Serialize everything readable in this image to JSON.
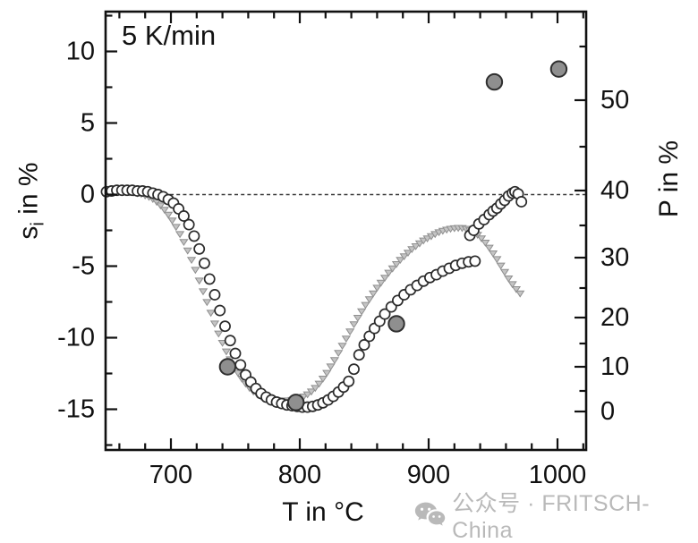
{
  "annotation": {
    "heating_rate": "5 K/min"
  },
  "watermark": {
    "icon": "wechat-icon",
    "text": "公众号 · FRITSCH-China"
  },
  "chart_data": {
    "type": "scatter",
    "title": "",
    "xlabel": "T in °C",
    "ylabel_left": {
      "pre": "s",
      "sub": "i",
      "post": " in %"
    },
    "ylabel_right": "P in %",
    "x_axis": {
      "lim": [
        650,
        1022
      ],
      "major_ticks": [
        700,
        800,
        900,
        1000
      ],
      "minor_step": 20,
      "minor_range": [
        660,
        1020
      ]
    },
    "y_left_axis": {
      "lim": [
        -17.8,
        12.8
      ],
      "major_ticks": [
        10,
        5,
        0,
        -5,
        -10,
        -15
      ],
      "minor_ticks": [
        12.5,
        7.5,
        2.5,
        -2.5,
        -7.5,
        -12.5,
        -17.5
      ]
    },
    "y_right_axis": {
      "major_ticks": [
        0,
        10,
        20,
        30,
        40,
        50
      ],
      "minor_ticks": [
        5,
        15,
        25,
        35,
        45,
        55
      ],
      "scale": "nonlinear",
      "anchors_P_to_py": [
        [
          0,
          460
        ],
        [
          5,
          437
        ],
        [
          10,
          410
        ],
        [
          15,
          384
        ],
        [
          20,
          355
        ],
        [
          25,
          322
        ],
        [
          30,
          288
        ],
        [
          35,
          252
        ],
        [
          40,
          213
        ],
        [
          45,
          164
        ],
        [
          50,
          112
        ],
        [
          55,
          52
        ]
      ]
    },
    "zero_line": {
      "y": 0,
      "style": "dashed"
    },
    "grid": false,
    "legend": "none",
    "colors": {
      "axis": "#111111",
      "open_circle_stroke": "#2b2b2b",
      "open_circle_fill": "#ffffff",
      "triangle_fill": "#c4c4c4",
      "triangle_stroke": "#8f8f8f",
      "filled_circle_fill": "#8f8f8f",
      "filled_circle_stroke": "#2f2f2f",
      "watermark": "#b9b9b9"
    },
    "series": [
      {
        "name": "si-shrinkage-open-circles",
        "marker": "open-circle",
        "y_axis": "left",
        "points": [
          [
            650,
            0.2
          ],
          [
            654,
            0.25
          ],
          [
            658,
            0.3
          ],
          [
            662,
            0.3
          ],
          [
            666,
            0.3
          ],
          [
            670,
            0.3
          ],
          [
            674,
            0.25
          ],
          [
            678,
            0.25
          ],
          [
            682,
            0.2
          ],
          [
            686,
            0.1
          ],
          [
            690,
            0
          ],
          [
            694,
            -0.15
          ],
          [
            698,
            -0.35
          ],
          [
            702,
            -0.6
          ],
          [
            706,
            -1
          ],
          [
            710,
            -1.5
          ],
          [
            714,
            -2.1
          ],
          [
            718,
            -2.9
          ],
          [
            722,
            -3.8
          ],
          [
            726,
            -4.8
          ],
          [
            730,
            -5.9
          ],
          [
            734,
            -7
          ],
          [
            738,
            -8.1
          ],
          [
            742,
            -9.2
          ],
          [
            746,
            -10.2
          ],
          [
            750,
            -11.1
          ],
          [
            754,
            -11.9
          ],
          [
            758,
            -12.6
          ],
          [
            762,
            -13.1
          ],
          [
            766,
            -13.55
          ],
          [
            770,
            -13.9
          ],
          [
            774,
            -14.15
          ],
          [
            778,
            -14.35
          ],
          [
            782,
            -14.5
          ],
          [
            786,
            -14.6
          ],
          [
            790,
            -14.7
          ],
          [
            794,
            -14.75
          ],
          [
            798,
            -14.8
          ],
          [
            802,
            -14.85
          ],
          [
            806,
            -14.85
          ],
          [
            810,
            -14.8
          ],
          [
            814,
            -14.7
          ],
          [
            818,
            -14.55
          ],
          [
            822,
            -14.35
          ],
          [
            826,
            -14.1
          ],
          [
            830,
            -13.8
          ],
          [
            834,
            -13.45
          ],
          [
            838,
            -13.05
          ],
          [
            842,
            -12.2
          ],
          [
            846,
            -11.2
          ],
          [
            850,
            -10.5
          ],
          [
            854,
            -9.9
          ],
          [
            858,
            -9.35
          ],
          [
            862,
            -8.85
          ],
          [
            866,
            -8.35
          ],
          [
            871,
            -7.85
          ],
          [
            876,
            -7.4
          ],
          [
            881,
            -7
          ],
          [
            886,
            -6.65
          ],
          [
            891,
            -6.35
          ],
          [
            896,
            -6.05
          ],
          [
            901,
            -5.8
          ],
          [
            906,
            -5.6
          ],
          [
            911,
            -5.35
          ],
          [
            916,
            -5.15
          ],
          [
            921,
            -4.95
          ],
          [
            926,
            -4.8
          ],
          [
            931,
            -4.7
          ],
          [
            936,
            -4.65
          ]
        ]
      },
      {
        "name": "si-shrinkage-final-expansion",
        "marker": "open-circle",
        "y_axis": "left",
        "points": [
          [
            932,
            -2.85
          ],
          [
            935,
            -2.5
          ],
          [
            939,
            -2.05
          ],
          [
            943,
            -1.75
          ],
          [
            947,
            -1.4
          ],
          [
            950,
            -1.15
          ],
          [
            953,
            -0.95
          ],
          [
            956,
            -0.65
          ],
          [
            959,
            -0.4
          ],
          [
            962,
            -0.1
          ],
          [
            965,
            0.1
          ],
          [
            967,
            0.2
          ],
          [
            969.5,
            0.05
          ],
          [
            972,
            -0.5
          ]
        ]
      },
      {
        "name": "si-shrinkage-triangles",
        "marker": "triangle-down",
        "y_axis": "left",
        "points": [
          [
            650,
            0.1
          ],
          [
            653,
            0.12
          ],
          [
            656,
            0.15
          ],
          [
            659,
            0.17
          ],
          [
            662,
            0.18
          ],
          [
            665,
            0.18
          ],
          [
            668,
            0.17
          ],
          [
            671,
            0.15
          ],
          [
            674,
            0.1
          ],
          [
            677,
            0.05
          ],
          [
            680,
            -0.05
          ],
          [
            683,
            -0.15
          ],
          [
            686,
            -0.3
          ],
          [
            689,
            -0.5
          ],
          [
            692,
            -0.75
          ],
          [
            695,
            -1.05
          ],
          [
            698,
            -1.4
          ],
          [
            701,
            -1.8
          ],
          [
            704,
            -2.25
          ],
          [
            707,
            -2.75
          ],
          [
            710,
            -3.3
          ],
          [
            713,
            -3.9
          ],
          [
            716,
            -4.55
          ],
          [
            719,
            -5.25
          ],
          [
            722,
            -6
          ],
          [
            725,
            -6.75
          ],
          [
            728,
            -7.5
          ],
          [
            731,
            -8.25
          ],
          [
            734,
            -9
          ],
          [
            737,
            -9.7
          ],
          [
            740,
            -10.35
          ],
          [
            743,
            -10.95
          ],
          [
            746,
            -11.5
          ],
          [
            749,
            -12
          ],
          [
            752,
            -12.45
          ],
          [
            755,
            -12.85
          ],
          [
            758,
            -13.2
          ],
          [
            761,
            -13.5
          ],
          [
            764,
            -13.75
          ],
          [
            767,
            -13.95
          ],
          [
            770,
            -14.1
          ],
          [
            773,
            -14.2
          ],
          [
            776,
            -14.28
          ],
          [
            779,
            -14.33
          ],
          [
            782,
            -14.36
          ],
          [
            785,
            -14.38
          ],
          [
            788,
            -14.38
          ],
          [
            791,
            -14.37
          ],
          [
            794,
            -14.34
          ],
          [
            797,
            -14.3
          ],
          [
            800,
            -14.22
          ],
          [
            803,
            -14.1
          ],
          [
            806,
            -13.95
          ],
          [
            809,
            -13.75
          ],
          [
            812,
            -13.5
          ],
          [
            815,
            -13.2
          ],
          [
            818,
            -12.85
          ],
          [
            821,
            -12.45
          ],
          [
            824,
            -12
          ],
          [
            827,
            -11.55
          ],
          [
            830,
            -11.05
          ],
          [
            833,
            -10.55
          ],
          [
            836,
            -10.05
          ],
          [
            839,
            -9.55
          ],
          [
            842,
            -9.05
          ],
          [
            845,
            -8.6
          ],
          [
            848,
            -8.15
          ],
          [
            851,
            -7.7
          ],
          [
            854,
            -7.3
          ],
          [
            857,
            -6.9
          ],
          [
            860,
            -6.5
          ],
          [
            863,
            -6.15
          ],
          [
            866,
            -5.8
          ],
          [
            869,
            -5.45
          ],
          [
            872,
            -5.15
          ],
          [
            875,
            -4.85
          ],
          [
            878,
            -4.55
          ],
          [
            881,
            -4.3
          ],
          [
            884,
            -4.05
          ],
          [
            887,
            -3.8
          ],
          [
            890,
            -3.6
          ],
          [
            893,
            -3.4
          ],
          [
            896,
            -3.2
          ],
          [
            899,
            -3.05
          ],
          [
            902,
            -2.9
          ],
          [
            905,
            -2.75
          ],
          [
            908,
            -2.62
          ],
          [
            911,
            -2.52
          ],
          [
            914,
            -2.44
          ],
          [
            917,
            -2.38
          ],
          [
            920,
            -2.34
          ],
          [
            923,
            -2.32
          ],
          [
            926,
            -2.33
          ],
          [
            929,
            -2.38
          ],
          [
            932,
            -2.48
          ],
          [
            935,
            -2.62
          ],
          [
            938,
            -2.8
          ],
          [
            941,
            -3.05
          ],
          [
            944,
            -3.35
          ],
          [
            947,
            -3.7
          ],
          [
            950,
            -4.1
          ],
          [
            953,
            -4.5
          ],
          [
            956,
            -4.95
          ],
          [
            959,
            -5.4
          ],
          [
            962,
            -5.85
          ],
          [
            965,
            -6.25
          ],
          [
            968,
            -6.6
          ],
          [
            971,
            -6.9
          ]
        ]
      },
      {
        "name": "porosity-measured",
        "marker": "filled-circle",
        "y_axis": "right",
        "points": [
          [
            744,
            10
          ],
          [
            797,
            2.2
          ],
          [
            875,
            18.8
          ],
          [
            951,
            51.7
          ],
          [
            1001,
            52.9
          ]
        ]
      }
    ]
  }
}
